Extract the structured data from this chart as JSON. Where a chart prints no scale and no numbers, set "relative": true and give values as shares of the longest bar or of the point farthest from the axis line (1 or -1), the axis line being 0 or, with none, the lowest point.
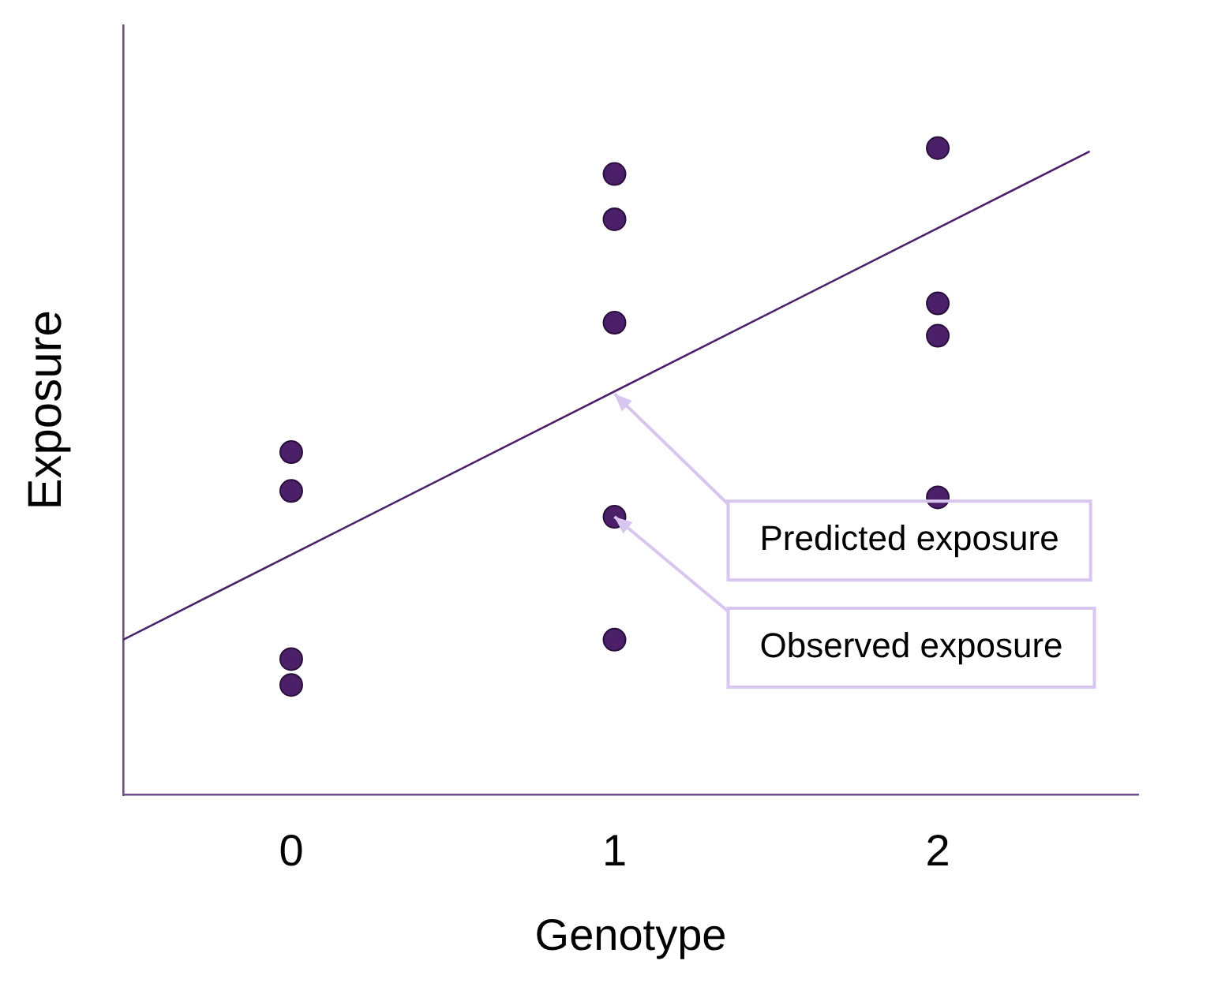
{
  "chart_data": {
    "type": "scatter",
    "xlabel": "Genotype",
    "ylabel": "Exposure",
    "relative": true,
    "xlim": [
      -0.52,
      2.62
    ],
    "xticks": [
      0,
      1,
      2
    ],
    "tick_labels": "x",
    "grid": false,
    "legend": false,
    "marker": "circle",
    "series": [
      {
        "color": "#4b2068",
        "x": [
          0,
          0,
          0,
          0,
          1,
          1,
          1,
          1,
          1,
          2,
          2,
          2,
          2
        ],
        "values": [
          0.53,
          0.47,
          0.21,
          0.17,
          0.96,
          0.89,
          0.73,
          0.43,
          0.24,
          1,
          0.76,
          0.71,
          0.46
        ]
      },
      {
        "type": "line",
        "marker": "none",
        "color": "#4b2068",
        "x": [
          -0.52,
          2.47
        ],
        "values": [
          0.24,
          0.995
        ]
      }
    ],
    "annotations": [
      {
        "text": "Predicted exposure",
        "x": 1,
        "y": 0.62
      },
      {
        "text": "Observed exposure",
        "x": 1,
        "y": 0.43
      }
    ]
  }
}
